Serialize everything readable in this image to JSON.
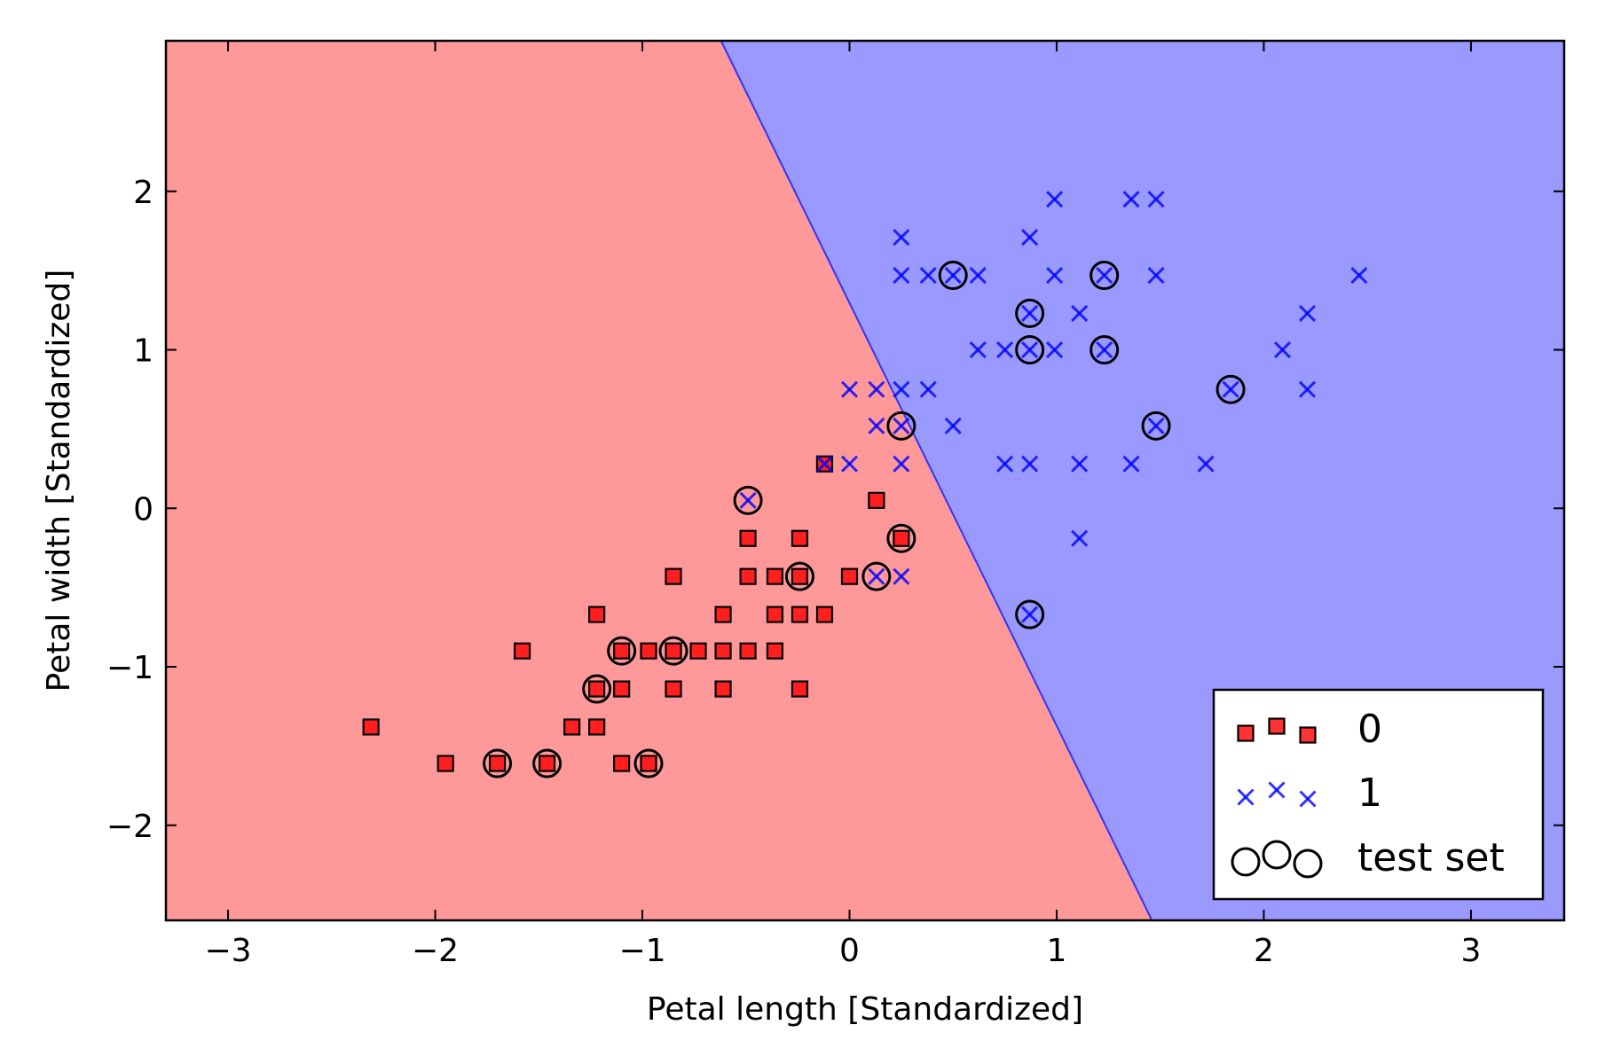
{
  "chart_data": {
    "type": "scatter",
    "title": "",
    "xlabel": "Petal length [Standardized]",
    "ylabel": "Petal width [Standardized]",
    "xlim": [
      -3.3,
      3.45
    ],
    "ylim": [
      -2.6,
      2.95
    ],
    "xticks": [
      -3,
      -2,
      -1,
      0,
      1,
      2,
      3
    ],
    "xtick_labels": [
      "−3",
      "−2",
      "−1",
      "0",
      "1",
      "2",
      "3"
    ],
    "yticks": [
      -2,
      -1,
      0,
      1,
      2
    ],
    "ytick_labels": [
      "−2",
      "−1",
      "0",
      "1",
      "2"
    ],
    "grid": false,
    "legend_position": "bottom-right",
    "decision_boundary": {
      "line": [
        [
          -0.62,
          2.95
        ],
        [
          1.46,
          -2.6
        ]
      ],
      "regions": [
        {
          "class": "0",
          "side": "left",
          "color": "#ff9999"
        },
        {
          "class": "1",
          "side": "right",
          "color": "#9999ff"
        }
      ]
    },
    "series": [
      {
        "name": "0",
        "marker": "square",
        "color": "#ff0000",
        "points": [
          [
            -2.31,
            -1.38
          ],
          [
            -1.95,
            -1.61
          ],
          [
            -1.7,
            -1.61
          ],
          [
            -1.58,
            -0.9
          ],
          [
            -1.46,
            -1.61
          ],
          [
            -1.34,
            -1.38
          ],
          [
            -1.22,
            -0.67
          ],
          [
            -1.22,
            -1.14
          ],
          [
            -1.22,
            -1.38
          ],
          [
            -1.1,
            -0.9
          ],
          [
            -1.1,
            -1.14
          ],
          [
            -1.1,
            -1.61
          ],
          [
            -0.97,
            -0.9
          ],
          [
            -0.97,
            -1.61
          ],
          [
            -0.85,
            -0.43
          ],
          [
            -0.85,
            -0.9
          ],
          [
            -0.85,
            -1.14
          ],
          [
            -0.73,
            -0.9
          ],
          [
            -0.61,
            -0.67
          ],
          [
            -0.61,
            -0.9
          ],
          [
            -0.61,
            -1.14
          ],
          [
            -0.49,
            -0.19
          ],
          [
            -0.49,
            -0.43
          ],
          [
            -0.49,
            -0.9
          ],
          [
            -0.36,
            -0.43
          ],
          [
            -0.36,
            -0.67
          ],
          [
            -0.36,
            -0.9
          ],
          [
            -0.24,
            -0.19
          ],
          [
            -0.24,
            -0.43
          ],
          [
            -0.24,
            -0.67
          ],
          [
            -0.24,
            -1.14
          ],
          [
            -0.12,
            -0.67
          ],
          [
            -0.12,
            0.28
          ],
          [
            0.0,
            -0.43
          ],
          [
            0.13,
            0.05
          ],
          [
            0.25,
            -0.19
          ]
        ]
      },
      {
        "name": "1",
        "marker": "x",
        "color": "#0000ff",
        "points": [
          [
            -0.49,
            0.05
          ],
          [
            -0.12,
            0.28
          ],
          [
            0.0,
            0.28
          ],
          [
            0.0,
            0.75
          ],
          [
            0.13,
            0.52
          ],
          [
            0.13,
            0.75
          ],
          [
            0.13,
            -0.43
          ],
          [
            0.25,
            -0.43
          ],
          [
            0.25,
            0.28
          ],
          [
            0.25,
            0.52
          ],
          [
            0.25,
            0.75
          ],
          [
            0.25,
            1.47
          ],
          [
            0.25,
            1.71
          ],
          [
            0.38,
            0.75
          ],
          [
            0.38,
            1.47
          ],
          [
            0.5,
            0.52
          ],
          [
            0.5,
            1.47
          ],
          [
            0.62,
            1.0
          ],
          [
            0.62,
            1.47
          ],
          [
            0.75,
            0.28
          ],
          [
            0.75,
            1.0
          ],
          [
            0.87,
            0.28
          ],
          [
            0.87,
            1.0
          ],
          [
            0.87,
            1.23
          ],
          [
            0.87,
            1.71
          ],
          [
            0.87,
            -0.67
          ],
          [
            0.99,
            1.0
          ],
          [
            0.99,
            1.47
          ],
          [
            0.99,
            1.95
          ],
          [
            1.11,
            0.28
          ],
          [
            1.11,
            1.23
          ],
          [
            1.11,
            -0.19
          ],
          [
            1.23,
            1.0
          ],
          [
            1.23,
            1.47
          ],
          [
            1.36,
            0.28
          ],
          [
            1.36,
            1.95
          ],
          [
            1.48,
            0.52
          ],
          [
            1.48,
            1.47
          ],
          [
            1.48,
            1.95
          ],
          [
            1.72,
            0.28
          ],
          [
            1.84,
            0.75
          ],
          [
            2.09,
            1.0
          ],
          [
            2.21,
            0.75
          ],
          [
            2.21,
            1.23
          ],
          [
            2.46,
            1.47
          ]
        ]
      },
      {
        "name": "test set",
        "marker": "circle-open",
        "color": "#000000",
        "points": [
          [
            -1.7,
            -1.61
          ],
          [
            -1.46,
            -1.61
          ],
          [
            -1.22,
            -1.14
          ],
          [
            -1.1,
            -0.9
          ],
          [
            -0.97,
            -1.61
          ],
          [
            -0.85,
            -0.9
          ],
          [
            -0.49,
            0.05
          ],
          [
            -0.24,
            -0.43
          ],
          [
            0.13,
            -0.43
          ],
          [
            0.25,
            0.52
          ],
          [
            0.25,
            -0.19
          ],
          [
            0.5,
            1.47
          ],
          [
            0.87,
            1.23
          ],
          [
            0.87,
            1.0
          ],
          [
            0.87,
            -0.67
          ],
          [
            1.23,
            1.47
          ],
          [
            1.23,
            1.0
          ],
          [
            1.48,
            0.52
          ],
          [
            1.84,
            0.75
          ]
        ]
      }
    ],
    "legend": [
      {
        "label": "0",
        "marker": "square",
        "color": "#ff0000"
      },
      {
        "label": "1",
        "marker": "x",
        "color": "#0000ff"
      },
      {
        "label": "test set",
        "marker": "circle-open",
        "color": "#000000"
      }
    ]
  }
}
